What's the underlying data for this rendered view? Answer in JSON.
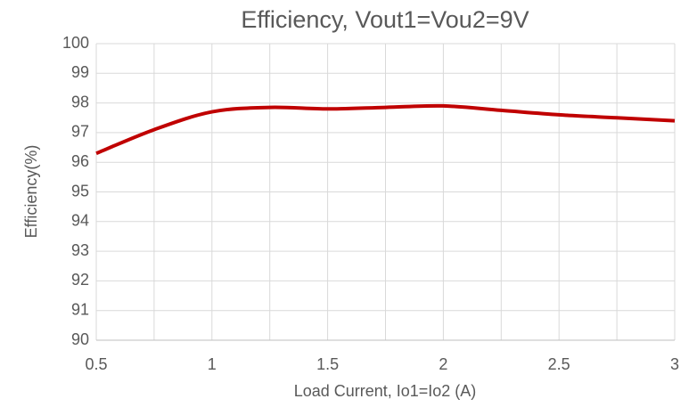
{
  "chart_data": {
    "type": "line",
    "title": "Efficiency, Vout1=Vou2=9V",
    "xlabel": "Load Current, Io1=Io2 (A)",
    "ylabel": "Efficiency(%)",
    "x": [
      0.5,
      0.75,
      1,
      1.25,
      1.5,
      1.75,
      2,
      2.25,
      2.5,
      2.75,
      3
    ],
    "series": [
      {
        "name": "Efficiency",
        "color": "#c00000",
        "values": [
          96.3,
          97.1,
          97.7,
          97.85,
          97.8,
          97.85,
          97.9,
          97.75,
          97.6,
          97.5,
          97.4
        ]
      }
    ],
    "xlim": [
      0.5,
      3
    ],
    "xticks": [
      0.5,
      1,
      1.5,
      2,
      2.5,
      3
    ],
    "xminorticks": [
      0.75,
      1.25,
      1.75,
      2.25,
      2.75
    ],
    "ylim": [
      90,
      100
    ],
    "yticks": [
      90,
      91,
      92,
      93,
      94,
      95,
      96,
      97,
      98,
      99,
      100
    ],
    "grid": true,
    "smooth": true
  }
}
